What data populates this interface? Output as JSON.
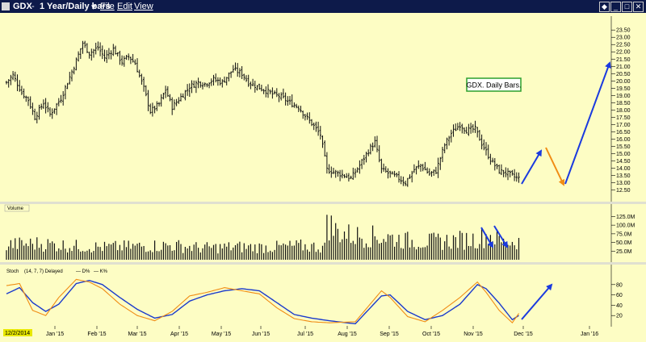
{
  "window": {
    "symbol": "GDX",
    "title_sep": "-",
    "timeframe": "1 Year/Daily bars",
    "menus": [
      "File",
      "Edit",
      "View"
    ]
  },
  "colors": {
    "background": "#fdfdc4",
    "titlebar": "#0d1a4a",
    "bars": "#111111",
    "d_line": "#1a3acc",
    "k_line": "#f08c14",
    "annotation_blue": "#1a3adf",
    "annotation_orange": "#f08c14",
    "label_border": "#2ca02c"
  },
  "chart_data": [
    {
      "type": "ohlc",
      "annotation": "GDX. Daily Bars.",
      "ylim": [
        12.25,
        23.9
      ],
      "y_ticks": [
        "23.50",
        "23.00",
        "22.50",
        "22.00",
        "21.50",
        "21.00",
        "20.50",
        "20.00",
        "19.50",
        "19.00",
        "18.50",
        "18.00",
        "17.50",
        "17.00",
        "16.50",
        "16.00",
        "15.50",
        "15.00",
        "14.50",
        "14.00",
        "13.50",
        "13.00",
        "12.50"
      ],
      "x_ticks": [
        "Jan '15",
        "Feb '15",
        "Mar '15",
        "Apr '15",
        "May '15",
        "Jun '15",
        "Jul '15",
        "Aug '15",
        "Sep '15",
        "Oct '15",
        "Nov '15",
        "Dec '15",
        "Jan '16"
      ],
      "start_date": "12/2/2014",
      "close_anchors": [
        [
          0,
          19.9
        ],
        [
          3,
          20.4
        ],
        [
          7,
          19.2
        ],
        [
          10,
          18.7
        ],
        [
          13,
          17.5
        ],
        [
          17,
          18.5
        ],
        [
          20,
          17.7
        ],
        [
          25,
          18.8
        ],
        [
          31,
          21.0
        ],
        [
          35,
          22.6
        ],
        [
          38,
          21.9
        ],
        [
          42,
          22.3
        ],
        [
          45,
          21.6
        ],
        [
          49,
          22.2
        ],
        [
          53,
          21.3
        ],
        [
          56,
          21.7
        ],
        [
          59,
          21.2
        ],
        [
          63,
          19.5
        ],
        [
          66,
          17.9
        ],
        [
          70,
          18.4
        ],
        [
          73,
          19.4
        ],
        [
          76,
          18.2
        ],
        [
          80,
          18.9
        ],
        [
          84,
          19.6
        ],
        [
          88,
          19.9
        ],
        [
          91,
          19.8
        ],
        [
          95,
          20.1
        ],
        [
          99,
          19.9
        ],
        [
          104,
          20.8
        ],
        [
          108,
          20.5
        ],
        [
          111,
          19.9
        ],
        [
          115,
          19.6
        ],
        [
          118,
          19.4
        ],
        [
          122,
          19.1
        ],
        [
          126,
          18.9
        ],
        [
          130,
          18.5
        ],
        [
          134,
          18.2
        ],
        [
          137,
          17.6
        ],
        [
          141,
          16.9
        ],
        [
          144,
          16.3
        ],
        [
          147,
          13.9
        ],
        [
          151,
          13.7
        ],
        [
          155,
          13.5
        ],
        [
          158,
          13.3
        ],
        [
          162,
          14.2
        ],
        [
          166,
          15.2
        ],
        [
          169,
          15.8
        ],
        [
          172,
          13.9
        ],
        [
          176,
          13.6
        ],
        [
          180,
          13.3
        ],
        [
          183,
          13.0
        ],
        [
          187,
          13.9
        ],
        [
          190,
          14.2
        ],
        [
          194,
          13.6
        ],
        [
          197,
          13.8
        ],
        [
          201,
          15.6
        ],
        [
          204,
          16.4
        ],
        [
          208,
          17.0
        ],
        [
          211,
          16.6
        ],
        [
          215,
          16.7
        ],
        [
          218,
          15.7
        ],
        [
          222,
          14.6
        ],
        [
          226,
          13.8
        ],
        [
          229,
          13.7
        ],
        [
          233,
          13.4
        ],
        [
          235,
          13.3
        ]
      ]
    },
    {
      "type": "bar",
      "label": "Volume",
      "y_ticks": [
        "125.0M",
        "100.0M",
        "75.0M",
        "50.0M",
        "25.0M"
      ],
      "ylim": [
        0,
        140
      ],
      "value_anchors": [
        [
          0,
          48
        ],
        [
          15,
          52
        ],
        [
          30,
          44
        ],
        [
          45,
          40
        ],
        [
          60,
          43
        ],
        [
          75,
          46
        ],
        [
          90,
          38
        ],
        [
          105,
          41
        ],
        [
          120,
          40
        ],
        [
          135,
          44
        ],
        [
          146,
          40
        ],
        [
          147,
          130
        ],
        [
          150,
          95
        ],
        [
          158,
          78
        ],
        [
          166,
          75
        ],
        [
          175,
          72
        ],
        [
          185,
          60
        ],
        [
          195,
          58
        ],
        [
          205,
          62
        ],
        [
          215,
          66
        ],
        [
          222,
          80
        ],
        [
          228,
          55
        ],
        [
          235,
          60
        ]
      ]
    },
    {
      "type": "line",
      "label": "Stoch",
      "params": "(14, 7, 7) Delayed",
      "series": [
        {
          "name": "D%",
          "anchors": [
            [
              0,
              62
            ],
            [
              6,
              74
            ],
            [
              12,
              45
            ],
            [
              18,
              28
            ],
            [
              24,
              42
            ],
            [
              32,
              82
            ],
            [
              38,
              88
            ],
            [
              44,
              80
            ],
            [
              52,
              55
            ],
            [
              60,
              32
            ],
            [
              68,
              15
            ],
            [
              76,
              22
            ],
            [
              84,
              48
            ],
            [
              92,
              60
            ],
            [
              100,
              68
            ],
            [
              108,
              72
            ],
            [
              116,
              68
            ],
            [
              124,
              45
            ],
            [
              132,
              22
            ],
            [
              140,
              15
            ],
            [
              148,
              10
            ],
            [
              160,
              4
            ],
            [
              172,
              58
            ],
            [
              176,
              60
            ],
            [
              184,
              28
            ],
            [
              192,
              12
            ],
            [
              200,
              20
            ],
            [
              208,
              42
            ],
            [
              216,
              80
            ],
            [
              220,
              72
            ],
            [
              226,
              44
            ],
            [
              232,
              12
            ],
            [
              235,
              20
            ]
          ]
        },
        {
          "name": "K%",
          "anchors": [
            [
              0,
              78
            ],
            [
              6,
              82
            ],
            [
              12,
              30
            ],
            [
              18,
              20
            ],
            [
              24,
              55
            ],
            [
              32,
              90
            ],
            [
              38,
              85
            ],
            [
              44,
              72
            ],
            [
              52,
              42
            ],
            [
              60,
              20
            ],
            [
              68,
              10
            ],
            [
              76,
              28
            ],
            [
              84,
              58
            ],
            [
              92,
              65
            ],
            [
              100,
              74
            ],
            [
              108,
              68
            ],
            [
              116,
              62
            ],
            [
              124,
              35
            ],
            [
              132,
              14
            ],
            [
              140,
              8
            ],
            [
              148,
              6
            ],
            [
              160,
              8
            ],
            [
              172,
              68
            ],
            [
              176,
              55
            ],
            [
              184,
              18
            ],
            [
              192,
              8
            ],
            [
              200,
              30
            ],
            [
              208,
              55
            ],
            [
              216,
              85
            ],
            [
              220,
              65
            ],
            [
              226,
              30
            ],
            [
              232,
              6
            ],
            [
              235,
              24
            ]
          ]
        }
      ],
      "y_ticks": [
        "80",
        "60",
        "40",
        "20"
      ],
      "ylim": [
        0,
        100
      ]
    }
  ]
}
